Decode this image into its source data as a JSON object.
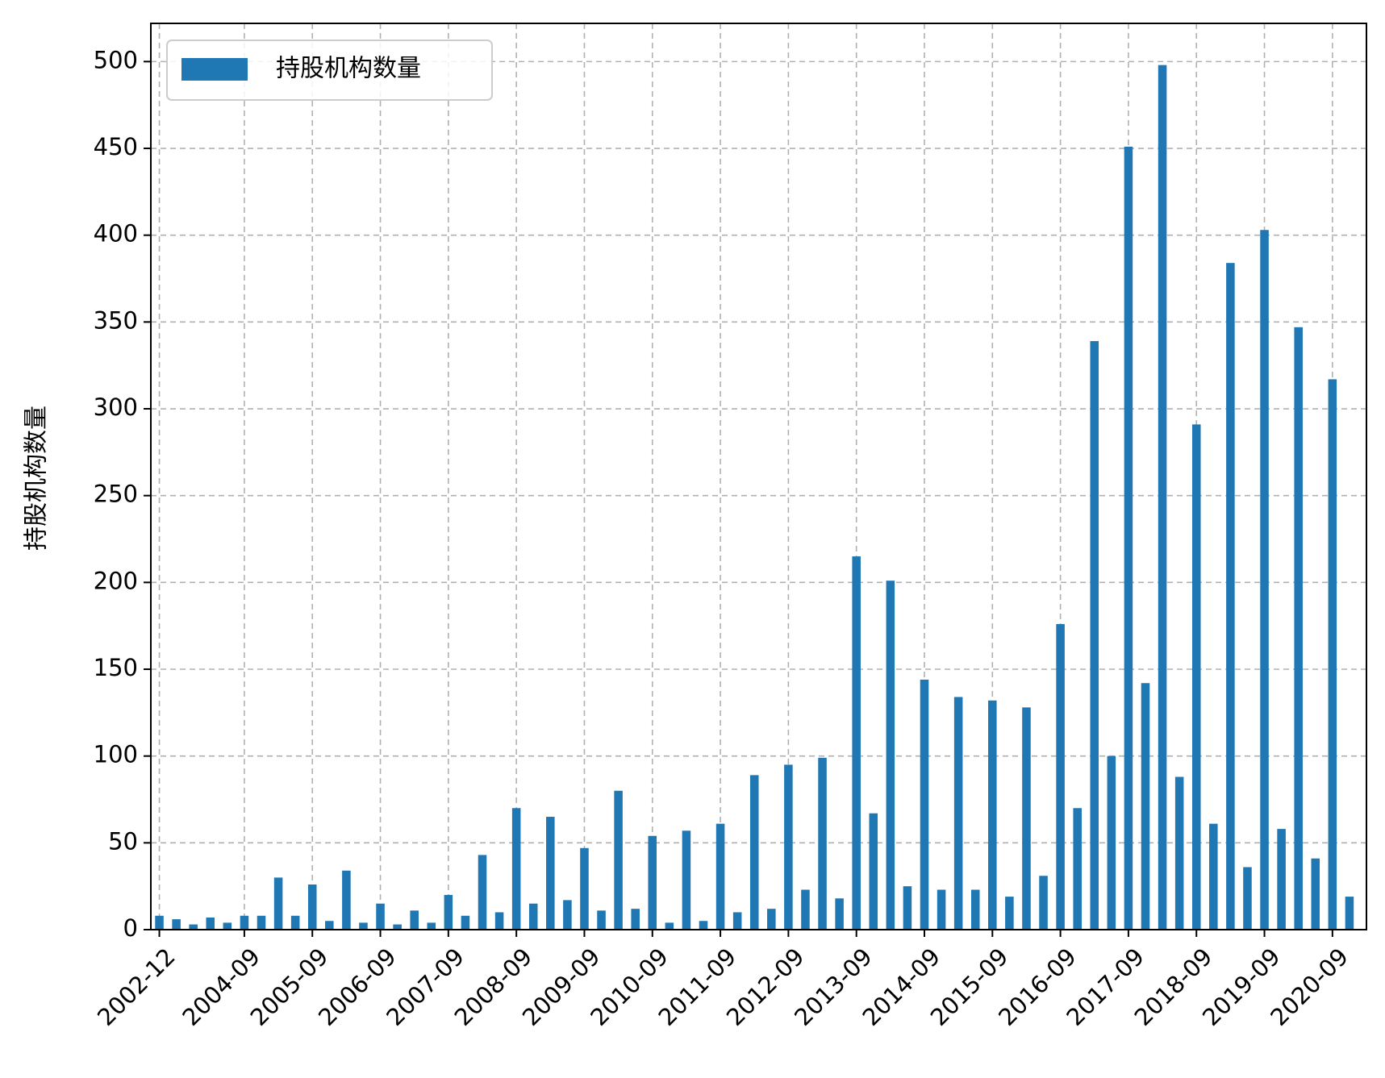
{
  "chart_data": {
    "type": "bar",
    "ylabel": "持股机构数量",
    "ylim": [
      0,
      522
    ],
    "yticks": [
      0,
      50,
      100,
      150,
      200,
      250,
      300,
      350,
      400,
      450,
      500
    ],
    "grid": true,
    "legend": {
      "position": "top-left"
    },
    "colors": {
      "bar": "#1f77b4",
      "grid": "#b0b0b0"
    },
    "xtick_labels": [
      "2002-12",
      "2004-09",
      "2005-09",
      "2006-09",
      "2007-09",
      "2008-09",
      "2009-09",
      "2010-09",
      "2011-09",
      "2012-09",
      "2013-09",
      "2014-09",
      "2015-09",
      "2016-09",
      "2017-09",
      "2018-09",
      "2019-09",
      "2020-09"
    ],
    "series": [
      {
        "name": "持股机构数量",
        "values": [
          8,
          6,
          3,
          7,
          4,
          8,
          8,
          30,
          8,
          26,
          5,
          34,
          4,
          15,
          3,
          11,
          4,
          20,
          8,
          43,
          10,
          70,
          15,
          65,
          17,
          47,
          11,
          80,
          12,
          54,
          4,
          57,
          5,
          61,
          10,
          89,
          12,
          95,
          23,
          99,
          18,
          215,
          67,
          201,
          25,
          144,
          23,
          134,
          23,
          132,
          19,
          128,
          31,
          176,
          70,
          339,
          100,
          451,
          142,
          498,
          88,
          291,
          61,
          384,
          36,
          403,
          58,
          347,
          41,
          317,
          19
        ]
      }
    ]
  }
}
